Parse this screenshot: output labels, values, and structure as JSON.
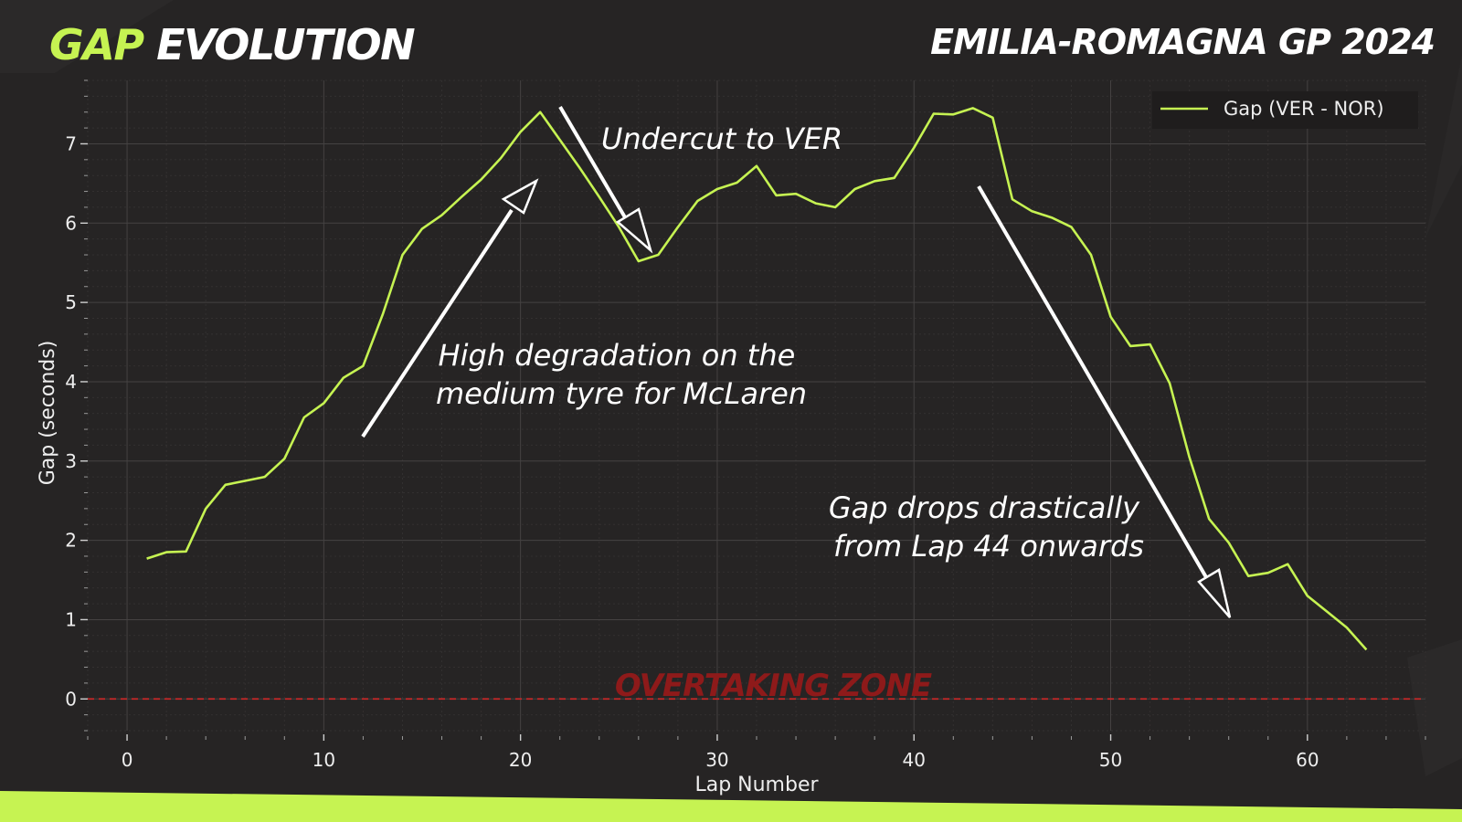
{
  "header": {
    "title_accent": "GAP",
    "title_rest": "EVOLUTION",
    "subtitle": "EMILIA-ROMAGNA GP 2024"
  },
  "colors": {
    "background": "#262424",
    "accent": "#c6f352",
    "line": "#c6f352",
    "zone_line": "#c62828",
    "zone_text": "#8e1a1a"
  },
  "chart_data": {
    "type": "line",
    "title": "",
    "xlabel": "Lap Number",
    "ylabel": "Gap (seconds)",
    "xlim": [
      -2,
      66
    ],
    "ylim": [
      -0.4,
      7.8
    ],
    "xticks": [
      0,
      10,
      20,
      30,
      40,
      50,
      60
    ],
    "yticks": [
      0,
      1,
      2,
      3,
      4,
      5,
      6,
      7
    ],
    "grid": true,
    "legend_position": "top-right",
    "series": [
      {
        "name": "Gap (VER - NOR)",
        "x": [
          1,
          2,
          3,
          4,
          5,
          6,
          7,
          8,
          9,
          10,
          11,
          12,
          13,
          14,
          15,
          16,
          17,
          18,
          19,
          20,
          21,
          22,
          23,
          24,
          25,
          26,
          27,
          28,
          29,
          30,
          31,
          32,
          33,
          34,
          35,
          36,
          37,
          38,
          39,
          40,
          41,
          42,
          43,
          44,
          45,
          46,
          47,
          48,
          49,
          50,
          51,
          52,
          53,
          54,
          55,
          56,
          57,
          58,
          59,
          60,
          61,
          62,
          63
        ],
        "values": [
          1.77,
          1.85,
          1.86,
          2.4,
          2.7,
          2.75,
          2.8,
          3.03,
          3.55,
          3.73,
          4.05,
          4.2,
          4.85,
          5.6,
          5.93,
          6.1,
          6.33,
          6.55,
          6.82,
          7.15,
          7.4,
          7.05,
          6.7,
          6.33,
          5.95,
          5.52,
          5.6,
          5.95,
          6.28,
          6.43,
          6.51,
          6.72,
          6.35,
          6.37,
          6.25,
          6.2,
          6.43,
          6.53,
          6.57,
          6.95,
          7.38,
          7.37,
          7.45,
          7.33,
          6.3,
          6.15,
          6.07,
          5.95,
          5.6,
          4.82,
          4.45,
          4.47,
          3.98,
          3.05,
          2.27,
          1.97,
          1.55,
          1.59,
          1.7,
          1.3,
          1.1,
          0.9,
          0.62
        ]
      }
    ],
    "reference_line": {
      "y": 0,
      "label": "OVERTAKING ZONE"
    },
    "annotations": [
      {
        "lines": [
          "Undercut to VER"
        ]
      },
      {
        "lines": [
          "High degradation on the",
          "medium tyre for McLaren"
        ]
      },
      {
        "lines": [
          "Gap drops drastically",
          "from Lap 44 onwards"
        ]
      }
    ]
  }
}
